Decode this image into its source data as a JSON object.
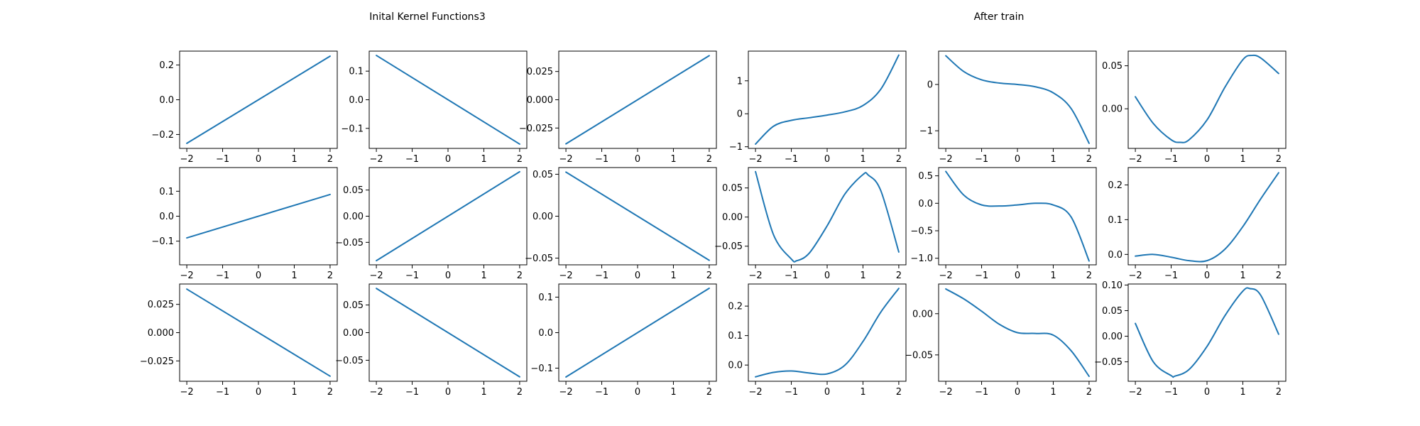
{
  "figure": {
    "title_left": "Inital Kernel Functions3",
    "title_right": "After train",
    "line_color": "#1f77b4"
  },
  "chart_data": [
    {
      "type": "line",
      "kind": "linear",
      "slope": 0.1255,
      "intercept": 0,
      "xlim": [
        -2.2,
        2.2
      ],
      "ylim": [
        -0.28,
        0.28
      ],
      "xticks": [
        -2,
        -1,
        0,
        1,
        2
      ],
      "yticks": [
        -0.2,
        0.0,
        0.2
      ],
      "xticklabels": [
        "−2",
        "−1",
        "0",
        "1",
        "2"
      ],
      "yticklabels": [
        "−0.2",
        "0.0",
        "0.2"
      ]
    },
    {
      "type": "line",
      "kind": "linear",
      "slope": -0.0775,
      "intercept": 0,
      "xlim": [
        -2.2,
        2.2
      ],
      "ylim": [
        -0.17,
        0.17
      ],
      "xticks": [
        -2,
        -1,
        0,
        1,
        2
      ],
      "yticks": [
        -0.1,
        0.0,
        0.1
      ],
      "xticklabels": [
        "−2",
        "−1",
        "0",
        "1",
        "2"
      ],
      "yticklabels": [
        "−0.1",
        "0.0",
        "0.1"
      ]
    },
    {
      "type": "line",
      "kind": "linear",
      "slope": 0.0195,
      "intercept": 0,
      "xlim": [
        -2.2,
        2.2
      ],
      "ylim": [
        -0.043,
        0.043
      ],
      "xticks": [
        -2,
        -1,
        0,
        1,
        2
      ],
      "yticks": [
        -0.025,
        0.0,
        0.025
      ],
      "xticklabels": [
        "−2",
        "−1",
        "0",
        "1",
        "2"
      ],
      "yticklabels": [
        "−0.025",
        "0.000",
        "0.025"
      ]
    },
    {
      "type": "line",
      "kind": "points",
      "x": [
        -2,
        -1.5,
        -1,
        -0.5,
        0,
        0.5,
        1,
        1.5,
        2
      ],
      "y": [
        -0.92,
        -0.38,
        -0.2,
        -0.12,
        -0.04,
        0.06,
        0.25,
        0.75,
        1.78
      ],
      "xlim": [
        -2.2,
        2.2
      ],
      "ylim": [
        -1.05,
        1.9
      ],
      "xticks": [
        -2,
        -1,
        0,
        1,
        2
      ],
      "yticks": [
        -1,
        0,
        1
      ],
      "xticklabels": [
        "−2",
        "−1",
        "0",
        "1",
        "2"
      ],
      "yticklabels": [
        "−1",
        "0",
        "1"
      ]
    },
    {
      "type": "line",
      "kind": "points",
      "x": [
        -2,
        -1.5,
        -1,
        -0.5,
        0,
        0.5,
        1,
        1.5,
        2
      ],
      "y": [
        0.62,
        0.28,
        0.1,
        0.03,
        0.0,
        -0.05,
        -0.18,
        -0.52,
        -1.27
      ],
      "xlim": [
        -2.2,
        2.2
      ],
      "ylim": [
        -1.38,
        0.72
      ],
      "xticks": [
        -2,
        -1,
        0,
        1,
        2
      ],
      "yticks": [
        -1,
        0
      ],
      "xticklabels": [
        "−2",
        "−1",
        "0",
        "1",
        "2"
      ],
      "yticklabels": [
        "−1",
        "0"
      ]
    },
    {
      "type": "line",
      "kind": "points",
      "x": [
        -2,
        -1.5,
        -1,
        -0.75,
        -0.5,
        0,
        0.5,
        1,
        1.25,
        1.5,
        2
      ],
      "y": [
        0.014,
        -0.017,
        -0.036,
        -0.039,
        -0.036,
        -0.013,
        0.025,
        0.057,
        0.062,
        0.059,
        0.041
      ],
      "xlim": [
        -2.2,
        2.2
      ],
      "ylim": [
        -0.046,
        0.067
      ],
      "xticks": [
        -2,
        -1,
        0,
        1,
        2
      ],
      "yticks": [
        0.0,
        0.05
      ],
      "xticklabels": [
        "−2",
        "−1",
        "0",
        "1",
        "2"
      ],
      "yticklabels": [
        "0.00",
        "0.05"
      ]
    },
    {
      "type": "line",
      "kind": "linear",
      "slope": 0.0435,
      "intercept": 0,
      "xlim": [
        -2.2,
        2.2
      ],
      "ylim": [
        -0.195,
        0.195
      ],
      "xticks": [
        -2,
        -1,
        0,
        1,
        2
      ],
      "yticks": [
        -0.1,
        0.0,
        0.1
      ],
      "xticklabels": [
        "−2",
        "−1",
        "0",
        "1",
        "2"
      ],
      "yticklabels": [
        "−0.1",
        "0.0",
        "0.1"
      ]
    },
    {
      "type": "line",
      "kind": "linear",
      "slope": 0.0425,
      "intercept": 0,
      "xlim": [
        -2.2,
        2.2
      ],
      "ylim": [
        -0.093,
        0.093
      ],
      "xticks": [
        -2,
        -1,
        0,
        1,
        2
      ],
      "yticks": [
        -0.05,
        0.0,
        0.05
      ],
      "xticklabels": [
        "−2",
        "−1",
        "0",
        "1",
        "2"
      ],
      "yticklabels": [
        "−0.05",
        "0.00",
        "0.05"
      ]
    },
    {
      "type": "line",
      "kind": "linear",
      "slope": -0.0263,
      "intercept": 0,
      "xlim": [
        -2.2,
        2.2
      ],
      "ylim": [
        -0.058,
        0.058
      ],
      "xticks": [
        -2,
        -1,
        0,
        1,
        2
      ],
      "yticks": [
        -0.05,
        0.0,
        0.05
      ],
      "xticklabels": [
        "−2",
        "−1",
        "0",
        "1",
        "2"
      ],
      "yticklabels": [
        "−0.05",
        "0.00",
        "0.05"
      ]
    },
    {
      "type": "line",
      "kind": "points",
      "x": [
        -2,
        -1.5,
        -1,
        -0.85,
        -0.5,
        0,
        0.5,
        1,
        1.15,
        1.5,
        2
      ],
      "y": [
        0.078,
        -0.03,
        -0.072,
        -0.075,
        -0.062,
        -0.015,
        0.04,
        0.073,
        0.072,
        0.045,
        -0.06
      ],
      "xlim": [
        -2.2,
        2.2
      ],
      "ylim": [
        -0.082,
        0.085
      ],
      "xticks": [
        -2,
        -1,
        0,
        1,
        2
      ],
      "yticks": [
        -0.05,
        0.0,
        0.05
      ],
      "xticklabels": [
        "−2",
        "−1",
        "0",
        "1",
        "2"
      ],
      "yticklabels": [
        "−0.05",
        "0.00",
        "0.05"
      ]
    },
    {
      "type": "line",
      "kind": "points",
      "x": [
        -2,
        -1.5,
        -1,
        -0.5,
        0,
        0.5,
        1,
        1.5,
        2
      ],
      "y": [
        0.58,
        0.15,
        -0.03,
        -0.05,
        -0.03,
        0.0,
        -0.03,
        -0.25,
        -1.05
      ],
      "xlim": [
        -2.2,
        2.2
      ],
      "ylim": [
        -1.12,
        0.65
      ],
      "xticks": [
        -2,
        -1,
        0,
        1,
        2
      ],
      "yticks": [
        -1.0,
        -0.5,
        0.0,
        0.5
      ],
      "xticklabels": [
        "−2",
        "−1",
        "0",
        "1",
        "2"
      ],
      "yticklabels": [
        "−1.0",
        "−0.5",
        "0.0",
        "0.5"
      ]
    },
    {
      "type": "line",
      "kind": "points",
      "x": [
        -2,
        -1.5,
        -1,
        -0.5,
        0,
        0.5,
        1,
        1.5,
        2
      ],
      "y": [
        -0.005,
        0.0,
        -0.008,
        -0.018,
        -0.018,
        0.015,
        0.08,
        0.16,
        0.235
      ],
      "xlim": [
        -2.2,
        2.2
      ],
      "ylim": [
        -0.03,
        0.25
      ],
      "xticks": [
        -2,
        -1,
        0,
        1,
        2
      ],
      "yticks": [
        0.0,
        0.1,
        0.2
      ],
      "xticklabels": [
        "−2",
        "−1",
        "0",
        "1",
        "2"
      ],
      "yticklabels": [
        "0.0",
        "0.1",
        "0.2"
      ]
    },
    {
      "type": "line",
      "kind": "linear",
      "slope": -0.01925,
      "intercept": 0,
      "xlim": [
        -2.2,
        2.2
      ],
      "ylim": [
        -0.043,
        0.043
      ],
      "xticks": [
        -2,
        -1,
        0,
        1,
        2
      ],
      "yticks": [
        -0.025,
        0.0,
        0.025
      ],
      "xticklabels": [
        "−2",
        "−1",
        "0",
        "1",
        "2"
      ],
      "yticklabels": [
        "−0.025",
        "0.000",
        "0.025"
      ]
    },
    {
      "type": "line",
      "kind": "linear",
      "slope": -0.04,
      "intercept": 0,
      "xlim": [
        -2.2,
        2.2
      ],
      "ylim": [
        -0.088,
        0.088
      ],
      "xticks": [
        -2,
        -1,
        0,
        1,
        2
      ],
      "yticks": [
        -0.05,
        0.0,
        0.05
      ],
      "xticklabels": [
        "−2",
        "−1",
        "0",
        "1",
        "2"
      ],
      "yticklabels": [
        "−0.05",
        "0.00",
        "0.05"
      ]
    },
    {
      "type": "line",
      "kind": "linear",
      "slope": 0.0625,
      "intercept": 0,
      "xlim": [
        -2.2,
        2.2
      ],
      "ylim": [
        -0.137,
        0.137
      ],
      "xticks": [
        -2,
        -1,
        0,
        1,
        2
      ],
      "yticks": [
        -0.1,
        0.0,
        0.1
      ],
      "xticklabels": [
        "−2",
        "−1",
        "0",
        "1",
        "2"
      ],
      "yticklabels": [
        "−0.1",
        "0.0",
        "0.1"
      ]
    },
    {
      "type": "line",
      "kind": "points",
      "x": [
        -2,
        -1.5,
        -1,
        -0.5,
        0,
        0.5,
        1,
        1.5,
        2
      ],
      "y": [
        -0.04,
        -0.025,
        -0.02,
        -0.027,
        -0.03,
        0.0,
        0.08,
        0.18,
        0.26
      ],
      "xlim": [
        -2.2,
        2.2
      ],
      "ylim": [
        -0.055,
        0.275
      ],
      "xticks": [
        -2,
        -1,
        0,
        1,
        2
      ],
      "yticks": [
        0.0,
        0.1,
        0.2
      ],
      "xticklabels": [
        "−2",
        "−1",
        "0",
        "1",
        "2"
      ],
      "yticklabels": [
        "0.0",
        "0.1",
        "0.2"
      ]
    },
    {
      "type": "line",
      "kind": "points",
      "x": [
        -2,
        -1.5,
        -1,
        -0.5,
        0,
        0.5,
        1,
        1.5,
        2
      ],
      "y": [
        0.03,
        0.018,
        0.003,
        -0.013,
        -0.023,
        -0.024,
        -0.026,
        -0.045,
        -0.076
      ],
      "xlim": [
        -2.2,
        2.2
      ],
      "ylim": [
        -0.082,
        0.036
      ],
      "xticks": [
        -2,
        -1,
        0,
        1,
        2
      ],
      "yticks": [
        -0.05,
        0.0
      ],
      "xticklabels": [
        "−2",
        "−1",
        "0",
        "1",
        "2"
      ],
      "yticklabels": [
        "−0.05",
        "0.00"
      ]
    },
    {
      "type": "line",
      "kind": "points",
      "x": [
        -2,
        -1.5,
        -1,
        -0.9,
        -0.5,
        0,
        0.5,
        1,
        1.2,
        1.5,
        2
      ],
      "y": [
        0.025,
        -0.05,
        -0.077,
        -0.078,
        -0.065,
        -0.02,
        0.04,
        0.088,
        0.093,
        0.08,
        0.004
      ],
      "xlim": [
        -2.2,
        2.2
      ],
      "ylim": [
        -0.088,
        0.102
      ],
      "xticks": [
        -2,
        -1,
        0,
        1,
        2
      ],
      "yticks": [
        -0.05,
        0.0,
        0.05,
        0.1
      ],
      "xticklabels": [
        "−2",
        "−1",
        "0",
        "1",
        "2"
      ],
      "yticklabels": [
        "−0.05",
        "0.00",
        "0.05",
        "0.10"
      ]
    }
  ]
}
